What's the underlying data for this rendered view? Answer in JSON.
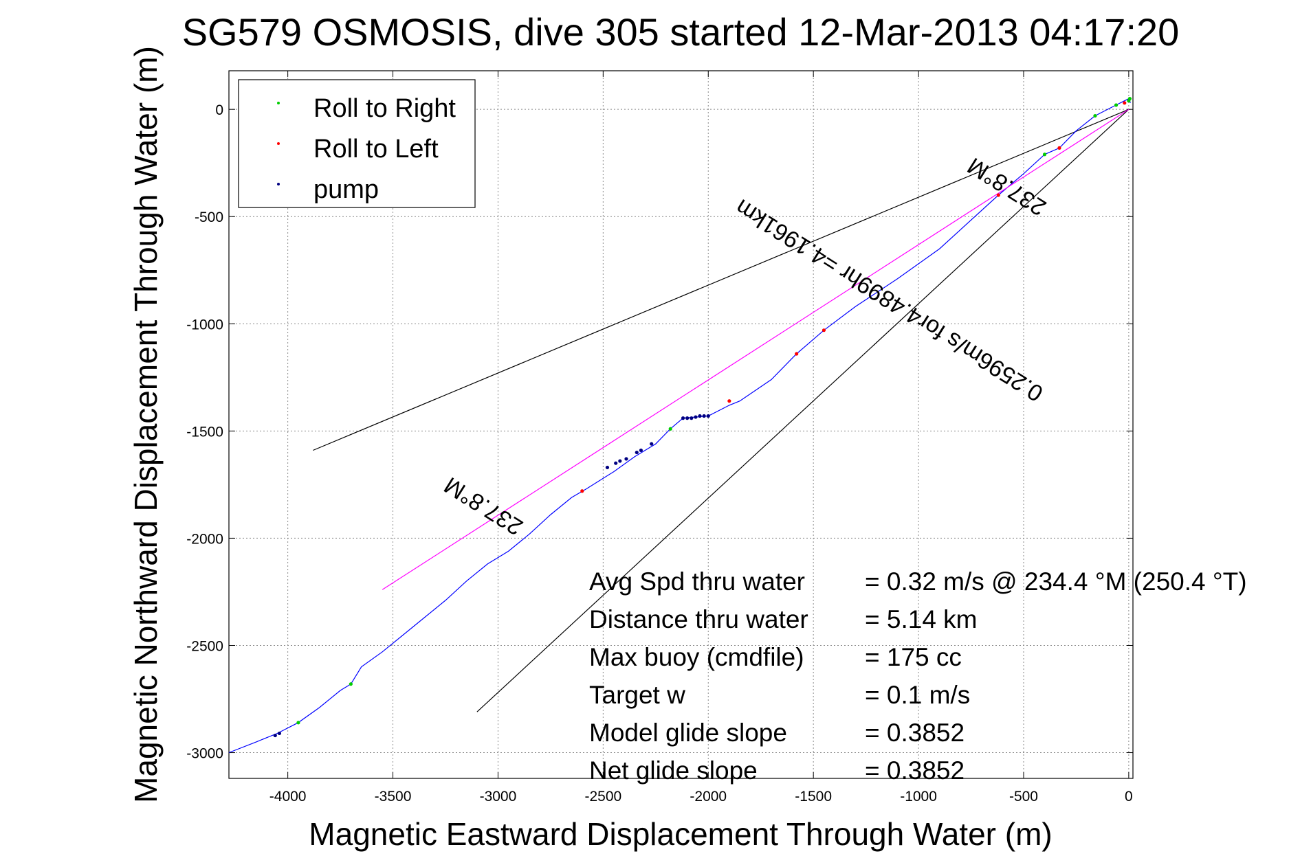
{
  "chart_data": {
    "type": "line",
    "title": "SG579 OSMOSIS, dive 305 started 12-Mar-2013 04:17:20",
    "xlabel": "Magnetic Eastward Displacement Through Water (m)",
    "ylabel": "Magnetic Northward Displacement Through Water (m)",
    "xlim": [
      -4280,
      20
    ],
    "ylim": [
      -3120,
      180
    ],
    "xticks": [
      -4000,
      -3500,
      -3000,
      -2500,
      -2000,
      -1500,
      -1000,
      -500,
      0
    ],
    "yticks": [
      -3000,
      -2500,
      -2000,
      -1500,
      -1000,
      -500,
      0
    ],
    "xtick_labels": [
      "-4000",
      "-3500",
      "-3000",
      "-2500",
      "-2000",
      "-1500",
      "-1000",
      "-500",
      "0"
    ],
    "ytick_labels": [
      "-3000",
      "-2500",
      "-2000",
      "-1500",
      "-1000",
      "-500",
      "0"
    ],
    "grid": true,
    "legend": {
      "placement": "top-left",
      "entries": [
        {
          "label": "Roll to Right",
          "color": "#00cc00"
        },
        {
          "label": "Roll to Left",
          "color": "#ff0000"
        },
        {
          "label": "pump",
          "color": "#000080"
        }
      ]
    },
    "series": [
      {
        "name": "track",
        "color": "#0000ff",
        "x": [
          -4280,
          -4150,
          -4050,
          -3950,
          -3850,
          -3750,
          -3700,
          -3650,
          -3550,
          -3450,
          -3350,
          -3250,
          -3150,
          -3050,
          -2950,
          -2850,
          -2750,
          -2650,
          -2580,
          -2450,
          -2350,
          -2250,
          -2180,
          -2120,
          -2000,
          -1900,
          -1850,
          -1700,
          -1580,
          -1450,
          -1300,
          -1100,
          -900,
          -620,
          -500,
          -400,
          -330,
          -250,
          -160,
          -60,
          -20,
          0,
          8
        ],
        "y": [
          -3000,
          -2950,
          -2910,
          -2860,
          -2790,
          -2710,
          -2680,
          -2600,
          -2530,
          -2450,
          -2370,
          -2290,
          -2200,
          -2120,
          -2060,
          -1980,
          -1890,
          -1810,
          -1770,
          -1690,
          -1620,
          -1560,
          -1490,
          -1440,
          -1430,
          -1380,
          -1360,
          -1260,
          -1140,
          -1030,
          -920,
          -790,
          -650,
          -400,
          -300,
          -210,
          -180,
          -100,
          -30,
          20,
          40,
          50,
          30
        ]
      },
      {
        "name": "heading",
        "color": "#ff00ff",
        "x": [
          -3550,
          0
        ],
        "y": [
          -2240,
          0
        ]
      }
    ],
    "markers": {
      "roll_right": {
        "color": "#00cc00",
        "x": [
          -3950,
          -3700,
          -2180,
          -400,
          -160,
          -60,
          0,
          5
        ],
        "y": [
          -2860,
          -2680,
          -1490,
          -210,
          -30,
          20,
          40,
          50
        ]
      },
      "roll_left": {
        "color": "#ff0000",
        "x": [
          -2600,
          -1900,
          -1580,
          -1450,
          -620,
          -330,
          -20
        ],
        "y": [
          -1780,
          -1360,
          -1140,
          -1030,
          -400,
          -180,
          30
        ]
      },
      "pump": {
        "color": "#000080",
        "x": [
          -4060,
          -4040,
          -2480,
          -2440,
          -2420,
          -2390,
          -2340,
          -2320,
          -2270,
          -2120,
          -2100,
          -2080,
          -2060,
          -2040,
          -2020,
          -2000
        ],
        "y": [
          -2920,
          -2910,
          -1670,
          -1650,
          -1640,
          -1630,
          -1600,
          -1590,
          -1560,
          -1440,
          -1440,
          -1440,
          -1435,
          -1430,
          -1430,
          -1430
        ]
      }
    },
    "reference_lines": [
      {
        "color": "#000000",
        "x": [
          -3880,
          0
        ],
        "y": [
          -1590,
          0
        ]
      },
      {
        "color": "#000000",
        "x": [
          -3100,
          0
        ],
        "y": [
          -2810,
          0
        ]
      }
    ],
    "annotations": [
      {
        "text": "237.8°M",
        "x": -3050,
        "y": -1820,
        "angle_deg": 212.2
      },
      {
        "text": "237.8°M",
        "x": -560,
        "y": -330,
        "angle_deg": 212.2
      },
      {
        "text": "0.2596m/s for4.4899hr =4.1961km",
        "x": -1120,
        "y": -860,
        "angle_deg": 212.2
      }
    ]
  },
  "stats": [
    {
      "label": "Avg Spd thru water",
      "value": "=  0.32 m/s @ 234.4  °M (250.4  °T)"
    },
    {
      "label": "Distance thru water",
      "value": "=  5.14 km"
    },
    {
      "label": "Max buoy (cmdfile)",
      "value": "= 175 cc"
    },
    {
      "label": "Target w",
      "value": "= 0.1 m/s"
    },
    {
      "label": "Model glide slope",
      "value": "= 0.3852"
    },
    {
      "label": "Net glide slope",
      "value": "= 0.3852"
    }
  ]
}
